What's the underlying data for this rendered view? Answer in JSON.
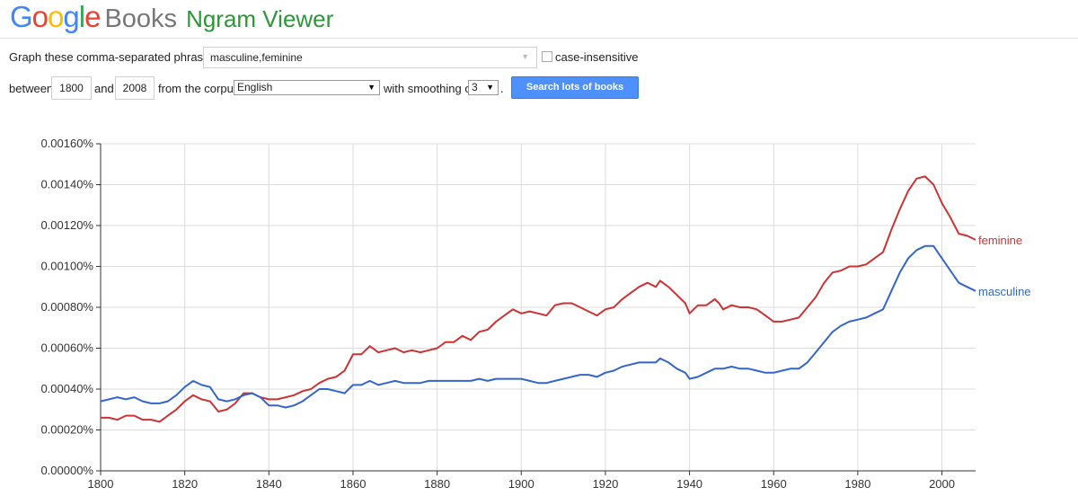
{
  "header": {
    "logo_letters": [
      {
        "ch": "G",
        "color": "#4285f4"
      },
      {
        "ch": "o",
        "color": "#ea4335"
      },
      {
        "ch": "o",
        "color": "#fbbc05"
      },
      {
        "ch": "g",
        "color": "#4285f4"
      },
      {
        "ch": "l",
        "color": "#34a853"
      },
      {
        "ch": "e",
        "color": "#ea4335"
      }
    ],
    "books": "Books",
    "title": "Ngram Viewer"
  },
  "form": {
    "phrases_label": "Graph these comma-separated phrases:",
    "phrases_value": "masculine,feminine",
    "case_insensitive_label": "case-insensitive",
    "between_label": "between",
    "start_year": "1800",
    "and_label": "and",
    "end_year": "2008",
    "corpus_label": "from the corpus",
    "corpus_value": "English",
    "smoothing_label": "with smoothing of",
    "smoothing_value": "3",
    "period": ".",
    "search_button": "Search lots of books"
  },
  "chart_data": {
    "type": "line",
    "title": "",
    "xlabel": "",
    "ylabel": "",
    "xlim": [
      1800,
      2008
    ],
    "ylim": [
      0,
      0.0016
    ],
    "x_ticks": [
      1800,
      1820,
      1840,
      1860,
      1880,
      1900,
      1920,
      1940,
      1960,
      1980,
      2000
    ],
    "y_ticks": [
      "0.00000%",
      "0.00020%",
      "0.00040%",
      "0.00060%",
      "0.00080%",
      "0.00100%",
      "0.00120%",
      "0.00140%",
      "0.00160%"
    ],
    "grid": true,
    "legend": "line-end labels",
    "series": [
      {
        "name": "feminine",
        "color": "#cc3333",
        "x": [
          1800,
          1802,
          1804,
          1806,
          1808,
          1810,
          1812,
          1814,
          1816,
          1818,
          1820,
          1822,
          1824,
          1826,
          1828,
          1830,
          1832,
          1834,
          1836,
          1838,
          1840,
          1842,
          1844,
          1846,
          1848,
          1850,
          1852,
          1854,
          1856,
          1858,
          1860,
          1862,
          1864,
          1866,
          1868,
          1870,
          1872,
          1874,
          1876,
          1878,
          1880,
          1882,
          1884,
          1886,
          1888,
          1890,
          1892,
          1894,
          1896,
          1898,
          1900,
          1902,
          1904,
          1906,
          1908,
          1910,
          1912,
          1914,
          1916,
          1918,
          1920,
          1922,
          1924,
          1926,
          1928,
          1930,
          1932,
          1933,
          1935,
          1937,
          1939,
          1940,
          1942,
          1944,
          1946,
          1947,
          1948,
          1950,
          1952,
          1954,
          1956,
          1958,
          1960,
          1962,
          1964,
          1966,
          1968,
          1970,
          1972,
          1974,
          1976,
          1978,
          1980,
          1982,
          1984,
          1986,
          1988,
          1990,
          1992,
          1994,
          1996,
          1998,
          2000,
          2002,
          2004,
          2006,
          2008
        ],
        "values": [
          0.00026,
          0.00026,
          0.00025,
          0.00027,
          0.00027,
          0.00025,
          0.00025,
          0.00024,
          0.00027,
          0.0003,
          0.00034,
          0.00037,
          0.00035,
          0.00034,
          0.00029,
          0.0003,
          0.00033,
          0.00038,
          0.00038,
          0.00036,
          0.00035,
          0.00035,
          0.00036,
          0.00037,
          0.00039,
          0.0004,
          0.00043,
          0.00045,
          0.00046,
          0.00049,
          0.00057,
          0.00057,
          0.00061,
          0.00058,
          0.00059,
          0.0006,
          0.00058,
          0.00059,
          0.00058,
          0.00059,
          0.0006,
          0.00063,
          0.00063,
          0.00066,
          0.00064,
          0.00068,
          0.00069,
          0.00073,
          0.00076,
          0.00079,
          0.00077,
          0.00078,
          0.00077,
          0.00076,
          0.00081,
          0.00082,
          0.00082,
          0.0008,
          0.00078,
          0.00076,
          0.00079,
          0.0008,
          0.00084,
          0.00087,
          0.0009,
          0.00092,
          0.0009,
          0.00093,
          0.0009,
          0.00086,
          0.00082,
          0.00077,
          0.00081,
          0.00081,
          0.00084,
          0.00082,
          0.00079,
          0.00081,
          0.0008,
          0.0008,
          0.00079,
          0.00076,
          0.00073,
          0.00073,
          0.00074,
          0.00075,
          0.0008,
          0.00085,
          0.00092,
          0.00097,
          0.00098,
          0.001,
          0.001,
          0.00101,
          0.00104,
          0.00107,
          0.00118,
          0.00128,
          0.00137,
          0.00143,
          0.00144,
          0.0014,
          0.00131,
          0.00124,
          0.00116,
          0.00115,
          0.00113
        ]
      },
      {
        "name": "masculine",
        "color": "#3366cc",
        "x": [
          1800,
          1802,
          1804,
          1806,
          1808,
          1810,
          1812,
          1814,
          1816,
          1818,
          1820,
          1822,
          1824,
          1826,
          1828,
          1830,
          1832,
          1834,
          1836,
          1838,
          1840,
          1842,
          1844,
          1846,
          1848,
          1850,
          1852,
          1854,
          1856,
          1858,
          1860,
          1862,
          1864,
          1866,
          1868,
          1870,
          1872,
          1874,
          1876,
          1878,
          1880,
          1882,
          1884,
          1886,
          1888,
          1890,
          1892,
          1894,
          1896,
          1898,
          1900,
          1902,
          1904,
          1906,
          1908,
          1910,
          1912,
          1914,
          1916,
          1918,
          1920,
          1922,
          1924,
          1926,
          1928,
          1930,
          1932,
          1933,
          1935,
          1937,
          1939,
          1940,
          1942,
          1944,
          1946,
          1947,
          1948,
          1950,
          1952,
          1954,
          1956,
          1958,
          1960,
          1962,
          1964,
          1966,
          1968,
          1970,
          1972,
          1974,
          1976,
          1978,
          1980,
          1982,
          1984,
          1986,
          1988,
          1990,
          1992,
          1994,
          1996,
          1998,
          2000,
          2002,
          2004,
          2006,
          2008
        ],
        "values": [
          0.00034,
          0.00035,
          0.00036,
          0.00035,
          0.00036,
          0.00034,
          0.00033,
          0.00033,
          0.00034,
          0.00037,
          0.00041,
          0.00044,
          0.00042,
          0.00041,
          0.00035,
          0.00034,
          0.00035,
          0.00037,
          0.00038,
          0.00036,
          0.00032,
          0.00032,
          0.00031,
          0.00032,
          0.00034,
          0.00037,
          0.0004,
          0.0004,
          0.00039,
          0.00038,
          0.00042,
          0.00042,
          0.00044,
          0.00042,
          0.00043,
          0.00044,
          0.00043,
          0.00043,
          0.00043,
          0.00044,
          0.00044,
          0.00044,
          0.00044,
          0.00044,
          0.00044,
          0.00045,
          0.00044,
          0.00045,
          0.00045,
          0.00045,
          0.00045,
          0.00044,
          0.00043,
          0.00043,
          0.00044,
          0.00045,
          0.00046,
          0.00047,
          0.00047,
          0.00046,
          0.00048,
          0.00049,
          0.00051,
          0.00052,
          0.00053,
          0.00053,
          0.00053,
          0.00055,
          0.00053,
          0.0005,
          0.00048,
          0.00045,
          0.00046,
          0.00048,
          0.0005,
          0.0005,
          0.0005,
          0.00051,
          0.0005,
          0.0005,
          0.00049,
          0.00048,
          0.00048,
          0.00049,
          0.0005,
          0.0005,
          0.00053,
          0.00058,
          0.00063,
          0.00068,
          0.00071,
          0.00073,
          0.00074,
          0.00075,
          0.00077,
          0.00079,
          0.00088,
          0.00097,
          0.00104,
          0.00108,
          0.0011,
          0.0011,
          0.00104,
          0.00098,
          0.00092,
          0.0009,
          0.00088
        ]
      }
    ]
  }
}
